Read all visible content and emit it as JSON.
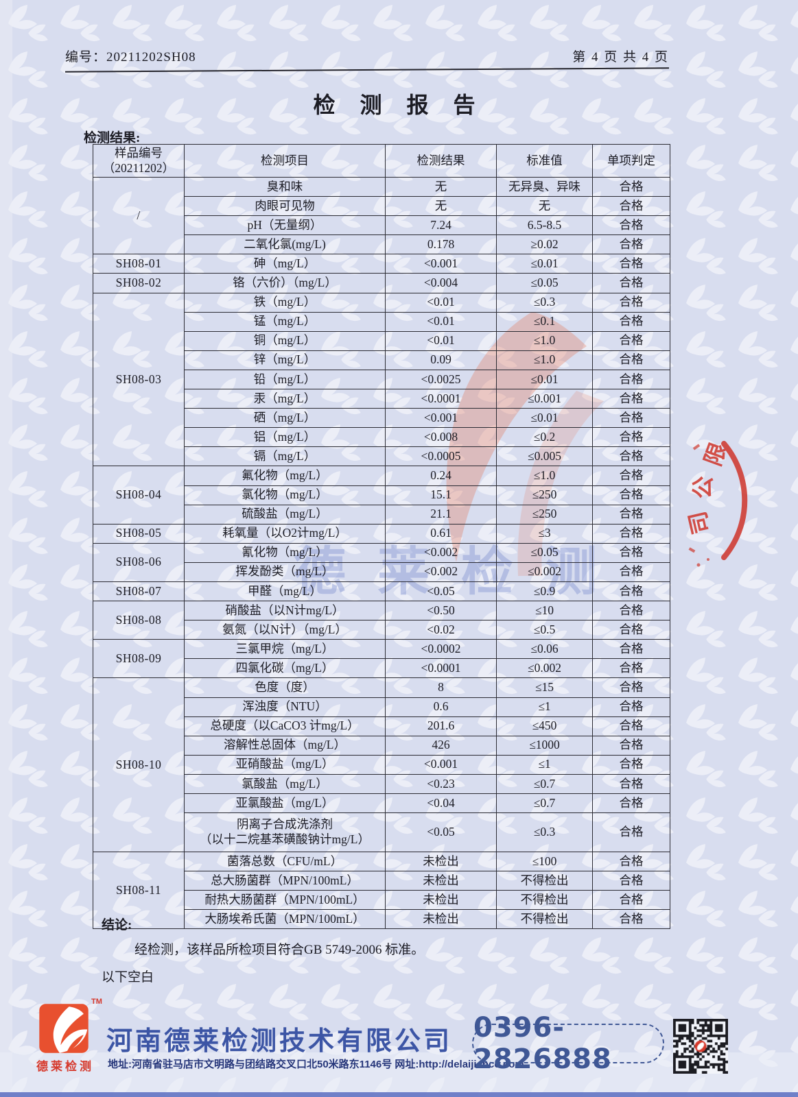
{
  "header": {
    "doc_no": "编号：20211202SH08",
    "page_indicator": "第 4 页 共 4 页"
  },
  "title": "检 测 报 告",
  "section_label": "检测结果:",
  "table": {
    "columns": {
      "sample": "样品编号\n（20211202）",
      "item": "检测项目",
      "result": "检测结果",
      "standard": "标准值",
      "judgement": "单项判定"
    },
    "groups": [
      {
        "sample": "/",
        "rows": [
          {
            "item": "臭和味",
            "result": "无",
            "standard": "无异臭、异味",
            "judgement": "合格"
          },
          {
            "item": "肉眼可见物",
            "result": "无",
            "standard": "无",
            "judgement": "合格"
          },
          {
            "item": "pH（无量纲）",
            "result": "7.24",
            "standard": "6.5-8.5",
            "judgement": "合格"
          },
          {
            "item": "二氧化氯(mg/L)",
            "result": "0.178",
            "standard": "≥0.02",
            "judgement": "合格"
          }
        ]
      },
      {
        "sample": "SH08-01",
        "rows": [
          {
            "item": "砷（mg/L）",
            "result": "<0.001",
            "standard": "≤0.01",
            "judgement": "合格"
          }
        ]
      },
      {
        "sample": "SH08-02",
        "rows": [
          {
            "item": "铬（六价）（mg/L）",
            "result": "<0.004",
            "standard": "≤0.05",
            "judgement": "合格"
          }
        ]
      },
      {
        "sample": "SH08-03",
        "rows": [
          {
            "item": "铁（mg/L）",
            "result": "<0.01",
            "standard": "≤0.3",
            "judgement": "合格"
          },
          {
            "item": "锰（mg/L）",
            "result": "<0.01",
            "standard": "≤0.1",
            "judgement": "合格"
          },
          {
            "item": "铜（mg/L）",
            "result": "<0.01",
            "standard": "≤1.0",
            "judgement": "合格"
          },
          {
            "item": "锌（mg/L）",
            "result": "0.09",
            "standard": "≤1.0",
            "judgement": "合格"
          },
          {
            "item": "铅（mg/L）",
            "result": "<0.0025",
            "standard": "≤0.01",
            "judgement": "合格"
          },
          {
            "item": "汞（mg/L）",
            "result": "<0.0001",
            "standard": "≤0.001",
            "judgement": "合格"
          },
          {
            "item": "硒（mg/L）",
            "result": "<0.001",
            "standard": "≤0.01",
            "judgement": "合格"
          },
          {
            "item": "铝（mg/L）",
            "result": "<0.008",
            "standard": "≤0.2",
            "judgement": "合格"
          },
          {
            "item": "镉（mg/L）",
            "result": "<0.0005",
            "standard": "≤0.005",
            "judgement": "合格"
          }
        ]
      },
      {
        "sample": "SH08-04",
        "rows": [
          {
            "item": "氟化物（mg/L）",
            "result": "0.24",
            "standard": "≤1.0",
            "judgement": "合格"
          },
          {
            "item": "氯化物（mg/L）",
            "result": "15.1",
            "standard": "≤250",
            "judgement": "合格"
          },
          {
            "item": "硫酸盐（mg/L）",
            "result": "21.1",
            "standard": "≤250",
            "judgement": "合格"
          }
        ]
      },
      {
        "sample": "SH08-05",
        "rows": [
          {
            "item": "耗氧量（以O2计mg/L）",
            "result": "0.61",
            "standard": "≤3",
            "judgement": "合格"
          }
        ]
      },
      {
        "sample": "SH08-06",
        "rows": [
          {
            "item": "氰化物（mg/L）",
            "result": "<0.002",
            "standard": "≤0.05",
            "judgement": "合格"
          },
          {
            "item": "挥发酚类（mg/L）",
            "result": "<0.002",
            "standard": "≤0.002",
            "judgement": "合格"
          }
        ]
      },
      {
        "sample": "SH08-07",
        "rows": [
          {
            "item": "甲醛（mg/L）",
            "result": "<0.05",
            "standard": "≤0.9",
            "judgement": "合格"
          }
        ]
      },
      {
        "sample": "SH08-08",
        "rows": [
          {
            "item": "硝酸盐（以N计mg/L）",
            "result": "<0.50",
            "standard": "≤10",
            "judgement": "合格"
          },
          {
            "item": "氨氮（以N计）（mg/L）",
            "result": "<0.02",
            "standard": "≤0.5",
            "judgement": "合格"
          }
        ]
      },
      {
        "sample": "SH08-09",
        "rows": [
          {
            "item": "三氯甲烷（mg/L）",
            "result": "<0.0002",
            "standard": "≤0.06",
            "judgement": "合格"
          },
          {
            "item": "四氯化碳（mg/L）",
            "result": "<0.0001",
            "standard": "≤0.002",
            "judgement": "合格"
          }
        ]
      },
      {
        "sample": "SH08-10",
        "rows": [
          {
            "item": "色度（度）",
            "result": "8",
            "standard": "≤15",
            "judgement": "合格"
          },
          {
            "item": "浑浊度（NTU）",
            "result": "0.6",
            "standard": "≤1",
            "judgement": "合格"
          },
          {
            "item": "总硬度（以CaCO3 计mg/L）",
            "result": "201.6",
            "standard": "≤450",
            "judgement": "合格"
          },
          {
            "item": "溶解性总固体（mg/L）",
            "result": "426",
            "standard": "≤1000",
            "judgement": "合格"
          },
          {
            "item": "亚硝酸盐（mg/L）",
            "result": "<0.001",
            "standard": "≤1",
            "judgement": "合格"
          },
          {
            "item": "氯酸盐（mg/L）",
            "result": "<0.23",
            "standard": "≤0.7",
            "judgement": "合格"
          },
          {
            "item": "亚氯酸盐（mg/L）",
            "result": "<0.04",
            "standard": "≤0.7",
            "judgement": "合格"
          },
          {
            "item": "阴离子合成洗涤剂\n（以十二烷基苯磺酸钠计mg/L）",
            "result": "<0.05",
            "standard": "≤0.3",
            "judgement": "合格",
            "tall": true
          }
        ]
      },
      {
        "sample": "SH08-11",
        "rows": [
          {
            "item": "菌落总数（CFU/mL）",
            "result": "未检出",
            "standard": "≤100",
            "judgement": "合格"
          },
          {
            "item": "总大肠菌群（MPN/100mL）",
            "result": "未检出",
            "standard": "不得检出",
            "judgement": "合格"
          },
          {
            "item": "耐热大肠菌群（MPN/100mL）",
            "result": "未检出",
            "standard": "不得检出",
            "judgement": "合格"
          },
          {
            "item": "大肠埃希氏菌（MPN/100mL）",
            "result": "未检出",
            "standard": "不得检出",
            "judgement": "合格"
          }
        ]
      }
    ]
  },
  "conclusion": {
    "label": "结论:",
    "text": "经检测，该样品所检项目符合GB 5749-2006 标准。",
    "end_note": "以下空白"
  },
  "watermarks": {
    "center_text": "德莱检测",
    "seal_text": "限公司"
  },
  "footer": {
    "logo_caption": "德莱检测",
    "trademark": "TM",
    "company_name": "河南德莱检测技术有限公司",
    "address": "地址:河南省驻马店市文明路与团结路交叉口北50米路东1146号 网址:http://delaijiance.com",
    "phone": "0396-2826888"
  },
  "colors": {
    "page_bg": "#d8ddef",
    "accent_red": "#d6392c",
    "brand_blue": "#3c55a5",
    "seal_red": "#cf3a30",
    "watermark_blue": "#8b9cd6",
    "watermark_orange": "#e4603a"
  }
}
